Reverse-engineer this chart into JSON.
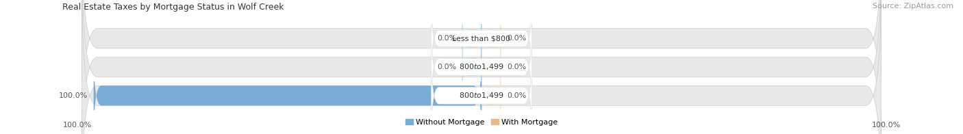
{
  "title": "Real Estate Taxes by Mortgage Status in Wolf Creek",
  "source": "Source: ZipAtlas.com",
  "categories": [
    "Less than $800",
    "$800 to $1,499",
    "$800 to $1,499"
  ],
  "without_mortgage": [
    0.0,
    0.0,
    100.0
  ],
  "with_mortgage": [
    0.0,
    0.0,
    0.0
  ],
  "color_without": "#7aadd4",
  "color_with": "#e8ba8a",
  "color_without_stub": "#a8c8e8",
  "color_with_stub": "#f0d0b0",
  "row_bg": "#e8e8e8",
  "title_fontsize": 9,
  "source_fontsize": 8,
  "label_fontsize": 8,
  "cat_fontsize": 8,
  "legend_fontsize": 8,
  "fig_width": 14.06,
  "fig_height": 1.96,
  "dpi": 100,
  "bottom_left_label": "100.0%",
  "bottom_right_label": "100.0%",
  "stub_size": 5.0,
  "max_val": 100.0
}
